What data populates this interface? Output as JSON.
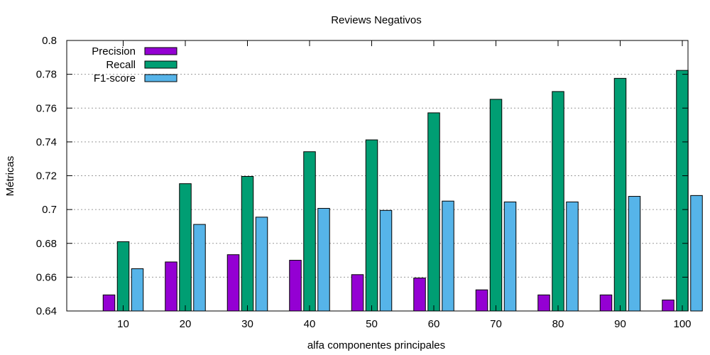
{
  "chart_data": {
    "type": "bar",
    "title": "Reviews Negativos",
    "xlabel": "alfa componentes principales",
    "ylabel": "Métricas",
    "categories": [
      "10",
      "20",
      "30",
      "40",
      "50",
      "60",
      "70",
      "80",
      "90",
      "100"
    ],
    "ylim": [
      0.64,
      0.8
    ],
    "yticks": [
      "0.64",
      "0.66",
      "0.68",
      "0.7",
      "0.72",
      "0.74",
      "0.76",
      "0.78",
      "0.8"
    ],
    "grid": true,
    "legend_position": "top-left",
    "series": [
      {
        "name": "Precision",
        "color": "#9400d3",
        "values": [
          0.6495,
          0.669,
          0.6733,
          0.67,
          0.6615,
          0.6595,
          0.6525,
          0.6495,
          0.6495,
          0.6465
        ]
      },
      {
        "name": "Recall",
        "color": "#009e73",
        "values": [
          0.681,
          0.7153,
          0.7196,
          0.7342,
          0.7412,
          0.7572,
          0.7652,
          0.7698,
          0.7776,
          0.7823
        ]
      },
      {
        "name": "F1-score",
        "color": "#56b4e9",
        "values": [
          0.665,
          0.6912,
          0.6955,
          0.7007,
          0.6995,
          0.705,
          0.7045,
          0.7045,
          0.7078,
          0.7083
        ]
      }
    ]
  }
}
